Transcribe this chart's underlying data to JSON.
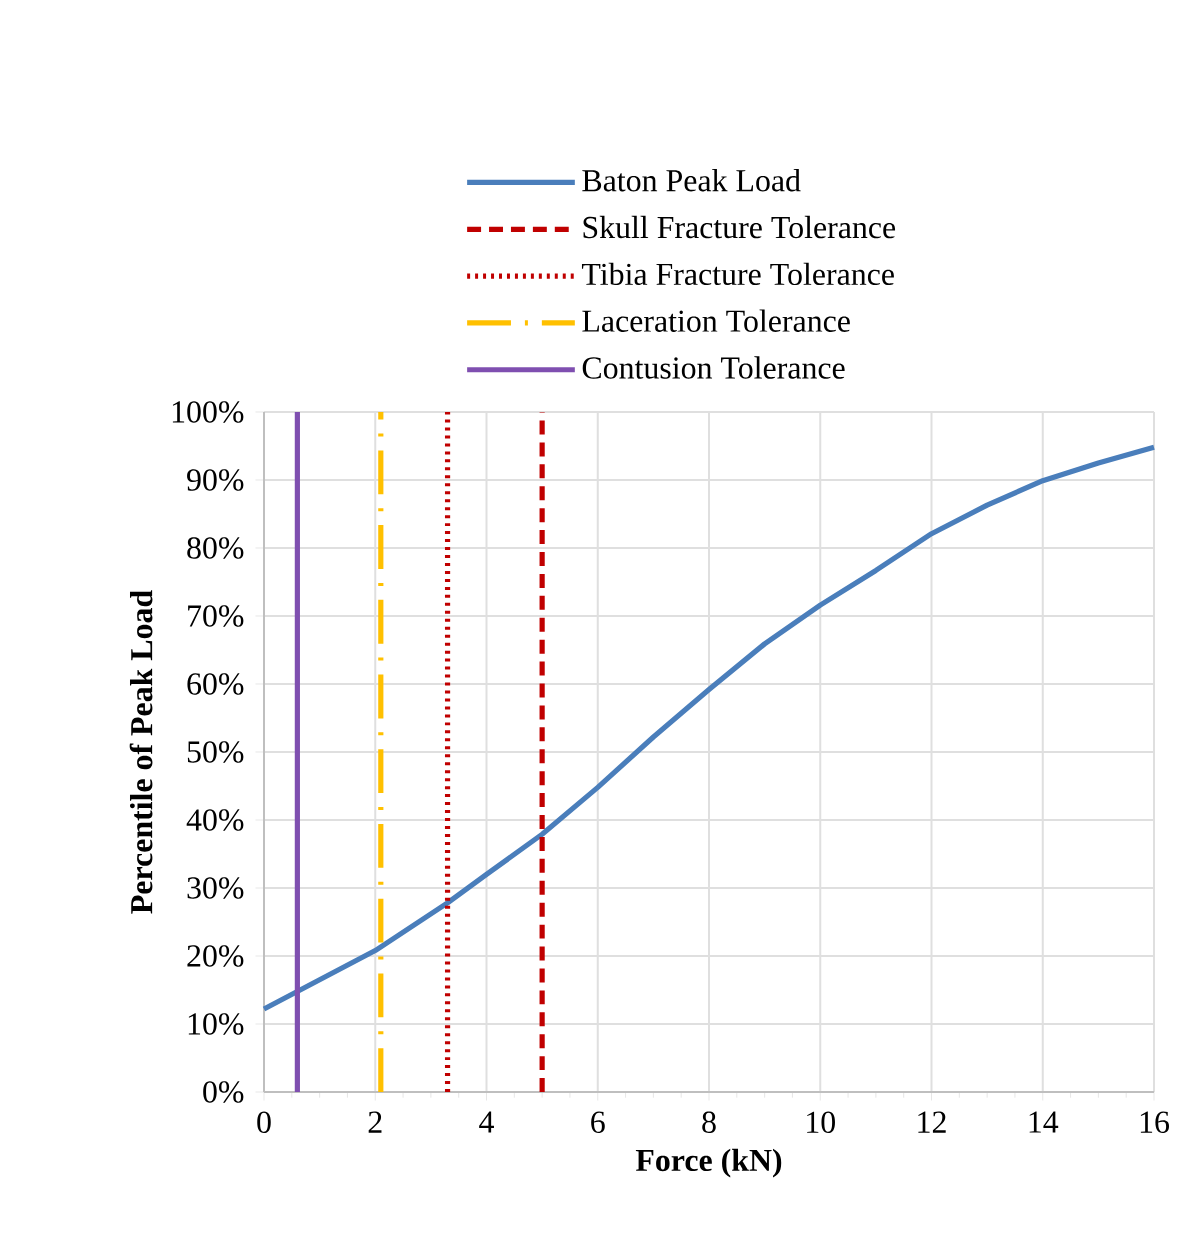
{
  "chart_data": {
    "type": "line",
    "xlabel": "Force (kN)",
    "ylabel": "Percentile of Peak Load",
    "series": [
      {
        "name": "Baton Peak Load",
        "color": "#4a7ebb",
        "line_style": "solid",
        "x": [
          0,
          2,
          3.3,
          4,
          5,
          6,
          7,
          8,
          9,
          10,
          11,
          12,
          13,
          14,
          15,
          16
        ],
        "values": [
          12.2,
          20.8,
          27.8,
          32,
          37.9,
          44.8,
          52.2,
          59.2,
          65.9,
          71.6,
          76.7,
          82.1,
          86.3,
          89.9,
          92.5,
          94.8
        ]
      },
      {
        "name": "Skull Fracture Tolerance",
        "color": "#c00000",
        "line_style": "dashed",
        "x": [
          5,
          5
        ],
        "values": [
          0,
          100
        ]
      },
      {
        "name": "Tibia Fracture Tolerance",
        "color": "#c00000",
        "line_style": "dotted",
        "x": [
          3.3,
          3.3
        ],
        "values": [
          0,
          100
        ]
      },
      {
        "name": "Laceration Tolerance",
        "color": "#ffc000",
        "line_style": "dashdot",
        "x": [
          2.1,
          2.1
        ],
        "values": [
          0,
          100
        ]
      },
      {
        "name": "Contusion Tolerance",
        "color": "#7f4fb0",
        "line_style": "solid",
        "x": [
          0.6,
          0.6
        ],
        "values": [
          0,
          100
        ]
      }
    ],
    "xlim": [
      0,
      16
    ],
    "xticks": [
      0,
      2,
      4,
      6,
      8,
      10,
      12,
      14,
      16
    ],
    "ylim": [
      0,
      100
    ],
    "yticks": [
      {
        "value": 0,
        "label": "0%"
      },
      {
        "value": 10,
        "label": "10%"
      },
      {
        "value": 20,
        "label": "20%"
      },
      {
        "value": 30,
        "label": "30%"
      },
      {
        "value": 40,
        "label": "40%"
      },
      {
        "value": 50,
        "label": "50%"
      },
      {
        "value": 60,
        "label": "60%"
      },
      {
        "value": 70,
        "label": "70%"
      },
      {
        "value": 80,
        "label": "80%"
      },
      {
        "value": 90,
        "label": "90%"
      },
      {
        "value": 100,
        "label": "100%"
      }
    ],
    "grid": true,
    "legend": "top"
  }
}
